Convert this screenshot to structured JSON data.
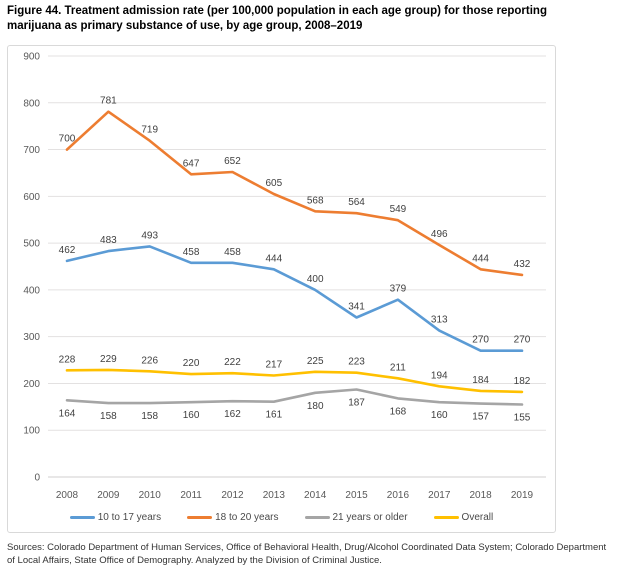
{
  "figure": {
    "title_lines": [
      "Figure 44. Treatment admission rate (per 100,000 population in each age group) for those reporting",
      "marijuana as primary substance of use, by age group, 2008–2019"
    ],
    "source_lines": [
      "Sources: Colorado Department of Human Services, Office of Behavioral Health, Drug/Alcohol Coordinated Data System; Colorado Department",
      "of Local Affairs, State Office of Demography. Analyzed by the Division of Criminal Justice."
    ]
  },
  "chart_data": {
    "type": "line",
    "title": "Figure 44. Treatment admission rate (per 100,000 population in each age group) for those reporting marijuana as primary substance of use, by age group, 2008–2019",
    "xlabel": "",
    "ylabel": "",
    "x": [
      "2008",
      "2009",
      "2010",
      "2011",
      "2012",
      "2013",
      "2014",
      "2015",
      "2016",
      "2017",
      "2018",
      "2019"
    ],
    "series": [
      {
        "name": "10 to 17 years",
        "color": "#5B9BD5",
        "label_position": "above",
        "values": [
          462,
          483,
          493,
          458,
          458,
          444,
          400,
          341,
          379,
          313,
          270,
          270
        ]
      },
      {
        "name": "18 to 20 years",
        "color": "#ED7D31",
        "label_position": "above",
        "values": [
          700,
          781,
          719,
          647,
          652,
          605,
          568,
          564,
          549,
          496,
          444,
          432
        ]
      },
      {
        "name": "21 years or older",
        "color": "#A5A5A5",
        "label_position": "below",
        "values": [
          164,
          158,
          158,
          160,
          162,
          161,
          180,
          187,
          168,
          160,
          157,
          155
        ]
      },
      {
        "name": "Overall",
        "color": "#FFC000",
        "label_position": "above",
        "values": [
          228,
          229,
          226,
          220,
          222,
          217,
          225,
          223,
          211,
          194,
          184,
          182
        ]
      }
    ],
    "ylim": [
      0,
      900
    ],
    "yticks": [
      0,
      100,
      200,
      300,
      400,
      500,
      600,
      700,
      800,
      900
    ],
    "grid": true,
    "data_labels": true,
    "legend_position": "bottom",
    "colors": {
      "gridline": "#e3e1e1",
      "axis_line": "#d2cfcf",
      "axis_text": "#595959",
      "data_label_text": "#404040"
    }
  }
}
